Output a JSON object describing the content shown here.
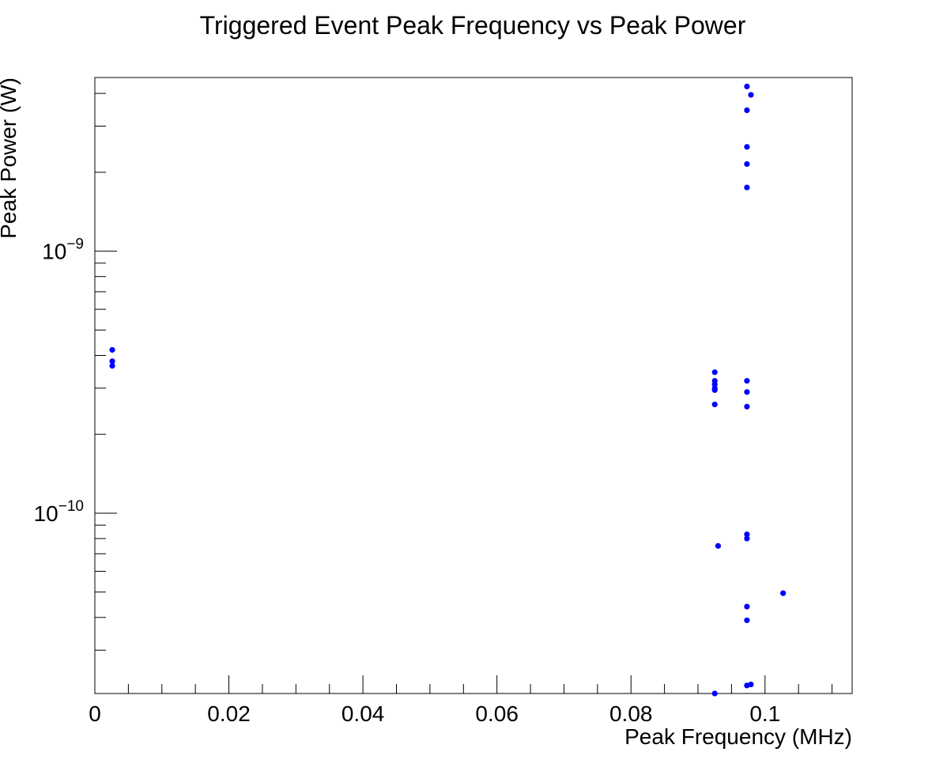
{
  "chart_data": {
    "type": "scatter",
    "title": "Triggered Event Peak Frequency vs Peak Power",
    "xlabel": "Peak Frequency (MHz)",
    "ylabel": "Peak Power (W)",
    "xlim": [
      0,
      0.113
    ],
    "ylim": [
      2.05e-11,
      4.6e-09
    ],
    "yscale": "log",
    "grid": false,
    "marker_color": "#0000ff",
    "x_tick_labels": [
      {
        "value": 0,
        "label": "0"
      },
      {
        "value": 0.02,
        "label": "0.02"
      },
      {
        "value": 0.04,
        "label": "0.04"
      },
      {
        "value": 0.06,
        "label": "0.06"
      },
      {
        "value": 0.08,
        "label": "0.08"
      },
      {
        "value": 0.1,
        "label": "0.1"
      }
    ],
    "y_tick_labels": [
      {
        "value": 1e-09,
        "base": "10",
        "exponent": "−9"
      },
      {
        "value": 1e-10,
        "base": "10",
        "exponent": "−10"
      }
    ],
    "points": [
      {
        "x": 0.0026,
        "y": 4.2e-10
      },
      {
        "x": 0.0026,
        "y": 3.8e-10
      },
      {
        "x": 0.0026,
        "y": 3.65e-10
      },
      {
        "x": 0.0925,
        "y": 3.45e-10
      },
      {
        "x": 0.0925,
        "y": 3.2e-10
      },
      {
        "x": 0.0925,
        "y": 3.1e-10
      },
      {
        "x": 0.0925,
        "y": 3e-10
      },
      {
        "x": 0.0925,
        "y": 2.95e-10
      },
      {
        "x": 0.0925,
        "y": 2.6e-10
      },
      {
        "x": 0.0973,
        "y": 4.25e-09
      },
      {
        "x": 0.0979,
        "y": 3.95e-09
      },
      {
        "x": 0.0973,
        "y": 3.45e-09
      },
      {
        "x": 0.0973,
        "y": 2.5e-09
      },
      {
        "x": 0.0973,
        "y": 2.15e-09
      },
      {
        "x": 0.0973,
        "y": 1.75e-09
      },
      {
        "x": 0.0973,
        "y": 3.2e-10
      },
      {
        "x": 0.0973,
        "y": 2.9e-10
      },
      {
        "x": 0.0973,
        "y": 2.55e-10
      },
      {
        "x": 0.0973,
        "y": 8.3e-11
      },
      {
        "x": 0.0973,
        "y": 8e-11
      },
      {
        "x": 0.093,
        "y": 7.5e-11
      },
      {
        "x": 0.1027,
        "y": 4.95e-11
      },
      {
        "x": 0.0973,
        "y": 4.4e-11
      },
      {
        "x": 0.0973,
        "y": 3.9e-11
      },
      {
        "x": 0.0925,
        "y": 2.05e-11
      },
      {
        "x": 0.0973,
        "y": 2.2e-11
      },
      {
        "x": 0.0979,
        "y": 2.22e-11
      }
    ]
  }
}
